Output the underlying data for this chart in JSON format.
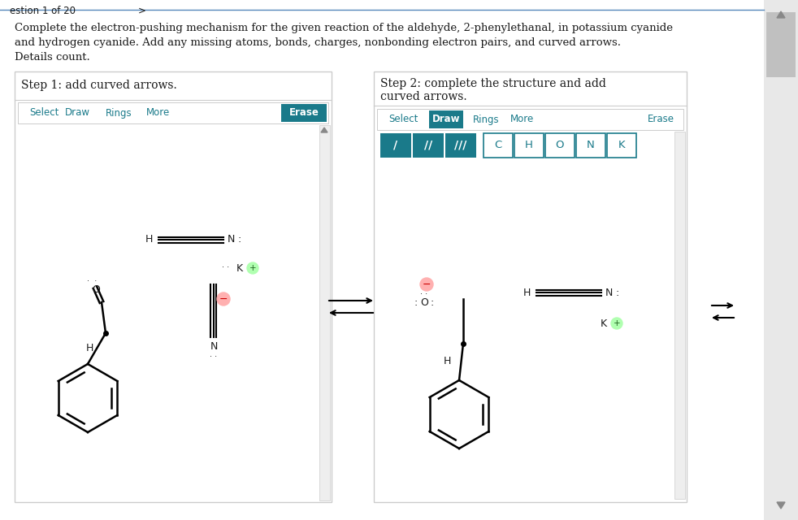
{
  "bg_color": "#f0f0f0",
  "page_bg": "#ffffff",
  "teal_color": "#1a7a8a",
  "text_color": "#1a1a1a",
  "gray_border": "#cccccc",
  "scrollbar_color": "#bbbbbb",
  "title_line1": "Complete the electron-pushing mechanism for the given reaction of the aldehyde, 2-phenylethanal, in potassium cyanide",
  "title_line2": "and hydrogen cyanide. Add any missing atoms, bonds, charges, nonbonding electron pairs, and curved arrows.",
  "title_line3": "Details count.",
  "step1_title": "Step 1: add curved arrows.",
  "step2_title_line1": "Step 2: complete the structure and add",
  "step2_title_line2": "curved arrows.",
  "erase_label": "Erase",
  "toolbar_items": [
    "Select",
    "Draw",
    "Rings",
    "More"
  ],
  "atom_buttons": [
    "C",
    "H",
    "O",
    "N",
    "K"
  ],
  "bond_symbols": [
    "/",
    "//",
    "///"
  ],
  "pink_neg": "#ffb0b0",
  "green_pos": "#b0ffb0",
  "nav_text": "estion 1 of 20",
  "nav_arrow": ">"
}
